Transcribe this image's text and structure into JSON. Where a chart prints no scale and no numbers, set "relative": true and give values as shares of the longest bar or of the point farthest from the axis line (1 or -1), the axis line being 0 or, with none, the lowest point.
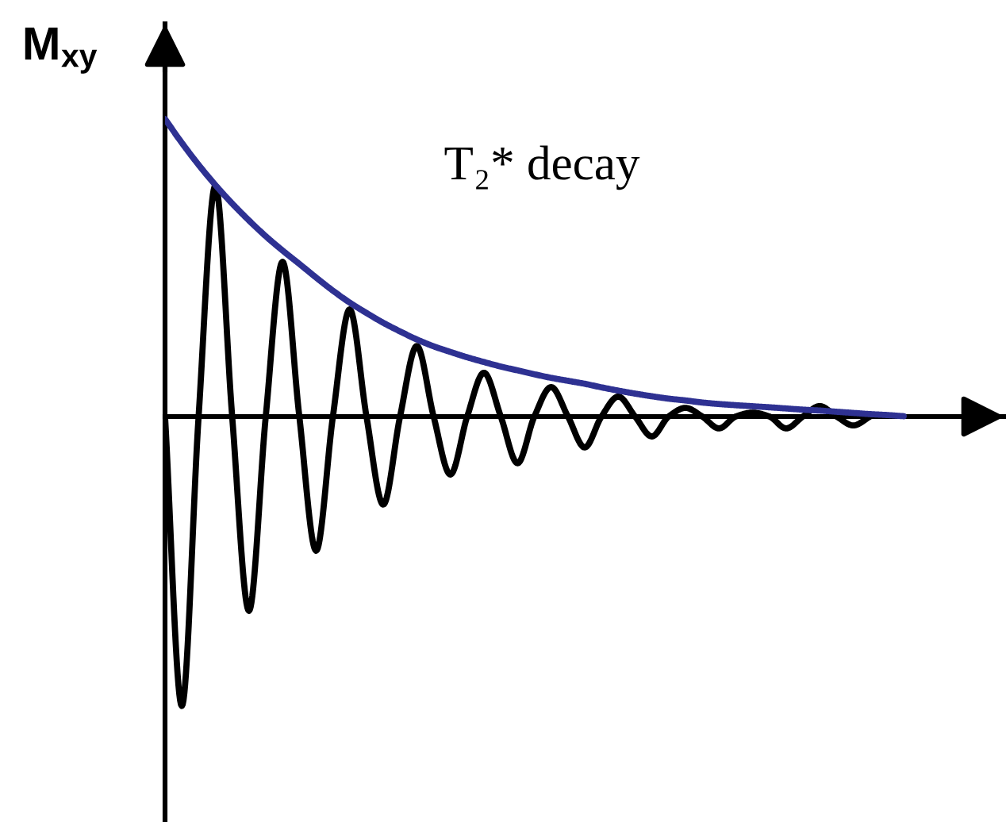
{
  "chart_data": {
    "type": "line",
    "relative": true,
    "ylabel": "M$_{xy}$",
    "categories": [
      null,
      null,
      null,
      null,
      null,
      null,
      null,
      null,
      null,
      null,
      null,
      null,
      null,
      null,
      null,
      null,
      null,
      null,
      null,
      null,
      null,
      null,
      null,
      null,
      null,
      null,
      null,
      null,
      null,
      null,
      null,
      null,
      null,
      null,
      null,
      null,
      null,
      null,
      null,
      null,
      null,
      null,
      null,
      null,
      null,
      null,
      null,
      null,
      null,
      null,
      null
    ],
    "series": [
      {
        "color": "#000000",
        "values": [
          0,
          -0.973,
          0,
          0.776,
          0,
          -0.653,
          0,
          0.52,
          0,
          -0.451,
          0,
          0.36,
          0,
          -0.296,
          0,
          0.237,
          0,
          -0.195,
          0,
          0.147,
          0,
          -0.157,
          0,
          0.099,
          0,
          -0.104,
          0,
          0.067,
          0,
          -0.067,
          0,
          0.029,
          0,
          -0.04,
          0,
          0.013,
          0,
          -0.04,
          0,
          0.035,
          0,
          -0.03,
          0,
          null,
          null,
          null,
          null,
          null,
          null,
          null,
          null
        ]
      },
      {
        "name": "T₂* decay",
        "color": "#2e3192",
        "values": [
          1.0,
          0.92,
          0.846,
          0.778,
          0.716,
          0.659,
          0.606,
          0.558,
          0.513,
          0.467,
          0.423,
          0.383,
          0.348,
          0.315,
          0.286,
          0.259,
          0.236,
          0.217,
          0.199,
          0.183,
          0.168,
          0.155,
          0.142,
          0.13,
          0.12,
          0.11,
          0.098,
          0.087,
          0.077,
          0.068,
          0.06,
          0.054,
          0.047,
          0.042,
          0.038,
          0.0345,
          0.031,
          0.027,
          0.023,
          0.02,
          0.016,
          0.012,
          0.008,
          0.005,
          0.001,
          null,
          null,
          null,
          null,
          null,
          null
        ]
      }
    ]
  }
}
